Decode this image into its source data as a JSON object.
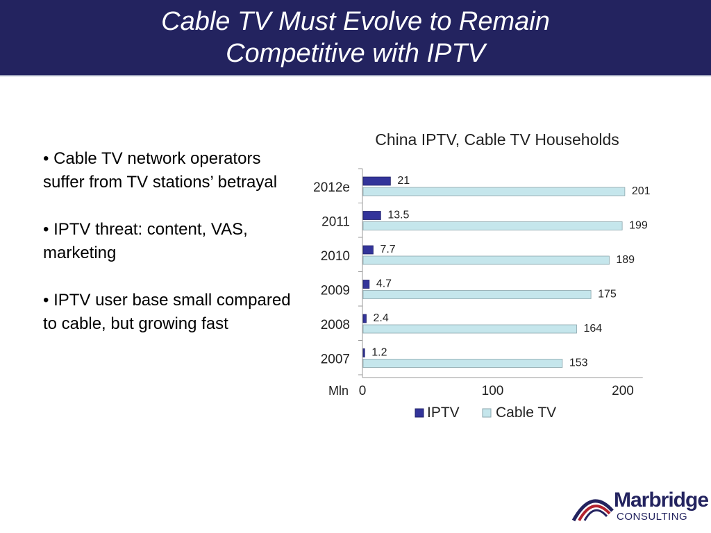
{
  "header": {
    "title_line1": "Cable TV Must Evolve to Remain",
    "title_line2": "Competitive with IPTV"
  },
  "bullets": [
    "• Cable TV network operators suffer from TV stations’ betrayal",
    "• IPTV threat: content, VAS, marketing",
    "• IPTV user base small compared to cable, but growing fast"
  ],
  "logo": {
    "name": "Marbridge",
    "sub": "CONSULTING"
  },
  "colors": {
    "header_bg": "#23235f",
    "iptv": "#33349a",
    "cable": "#c5e6ec"
  },
  "chart_data": {
    "type": "bar",
    "orientation": "horizontal",
    "title": "China IPTV, Cable TV Households",
    "categories": [
      "2012e",
      "2011",
      "2010",
      "2009",
      "2008",
      "2007"
    ],
    "series": [
      {
        "name": "IPTV",
        "values": [
          21,
          13.5,
          7.7,
          4.7,
          2.4,
          1.2
        ]
      },
      {
        "name": "Cable TV",
        "values": [
          201,
          199,
          189,
          175,
          164,
          153
        ]
      }
    ],
    "value_labels": [
      [
        "21",
        "13.5",
        "7.7",
        "4.7",
        "2.4",
        "1.2"
      ],
      [
        "201",
        "199",
        "189",
        "175",
        "164",
        "153"
      ]
    ],
    "xlabel": "Mln",
    "xticks": [
      "0",
      "100",
      "200"
    ],
    "xlim": [
      0,
      210
    ],
    "legend": "bottom"
  }
}
